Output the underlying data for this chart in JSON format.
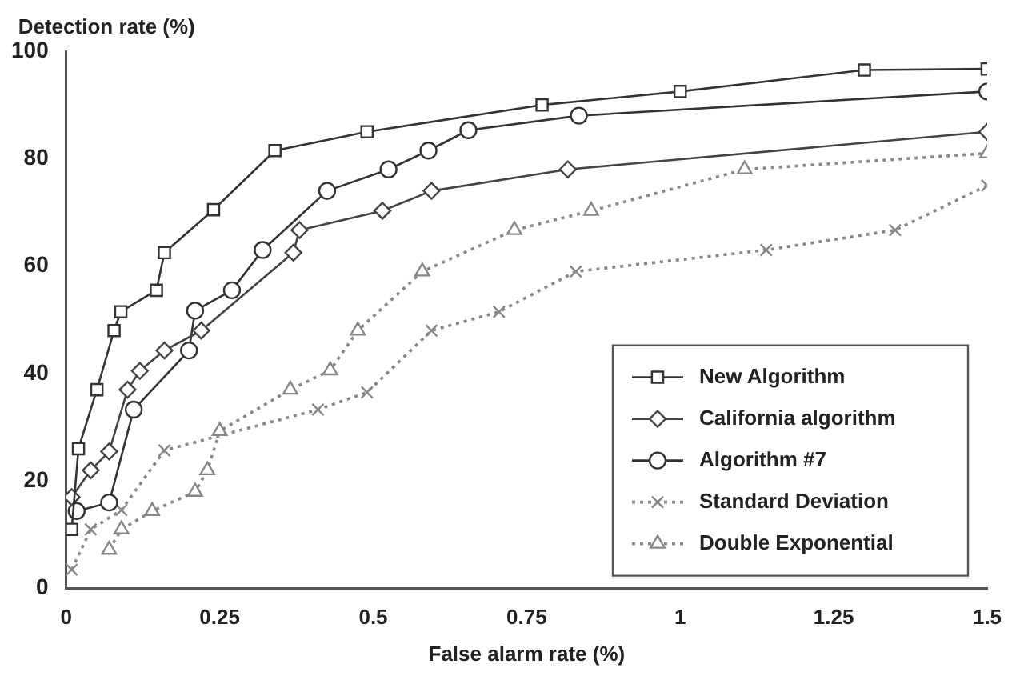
{
  "chart_data": {
    "type": "line",
    "xlabel": "False alarm rate (%)",
    "ylabel": "Detection rate (%)",
    "xlim": [
      0,
      1.5
    ],
    "xticks": [
      0,
      0.25,
      0.5,
      0.75,
      1,
      1.25,
      1.5
    ],
    "ylim": [
      0,
      100
    ],
    "yticks": [
      0,
      20,
      40,
      60,
      80,
      100
    ],
    "grid": false,
    "legend": "bottom right",
    "series": [
      {
        "name": "New Algorithm",
        "color": "#333333",
        "marker": "square",
        "line_style": "solid",
        "x": [
          0.009,
          0.02,
          0.05,
          0.078,
          0.089,
          0.147,
          0.16,
          0.24,
          0.34,
          0.49,
          0.775,
          1.0,
          1.3,
          1.5
        ],
        "values": [
          11,
          26,
          37,
          48,
          51.5,
          55.5,
          62.5,
          70.5,
          81.5,
          85,
          90,
          92.5,
          96.5,
          96.7
        ]
      },
      {
        "name": "California algorithm",
        "color": "#444444",
        "marker": "diamond",
        "line_style": "solid",
        "x": [
          0.009,
          0.04,
          0.07,
          0.1,
          0.12,
          0.16,
          0.22,
          0.37,
          0.38,
          0.515,
          0.595,
          0.817,
          1.5
        ],
        "values": [
          17,
          22,
          25.5,
          37,
          40.5,
          44.3,
          48,
          62.5,
          66.7,
          70.3,
          74,
          78,
          85
        ]
      },
      {
        "name": "Algorithm #7",
        "color": "#333333",
        "marker": "circle",
        "line_style": "solid",
        "x": [
          0.017,
          0.07,
          0.11,
          0.2,
          0.21,
          0.27,
          0.32,
          0.425,
          0.525,
          0.59,
          0.655,
          0.835,
          1.5
        ],
        "values": [
          14.4,
          16,
          33.3,
          44.3,
          51.7,
          55.5,
          63,
          74,
          78,
          81.5,
          85.3,
          88,
          92.5
        ]
      },
      {
        "name": "Standard Deviation",
        "color": "#888888",
        "marker": "cross",
        "line_style": "dotted",
        "x": [
          0.009,
          0.04,
          0.09,
          0.16,
          0.41,
          0.49,
          0.595,
          0.705,
          0.83,
          1.14,
          1.35,
          1.5
        ],
        "values": [
          3.5,
          11,
          14.6,
          25.7,
          33.3,
          36.5,
          48,
          51.5,
          59,
          63,
          66.7,
          75
        ]
      },
      {
        "name": "Double Exponential",
        "color": "#888888",
        "marker": "triangle",
        "line_style": "dotted",
        "x": [
          0.07,
          0.09,
          0.14,
          0.21,
          0.23,
          0.25,
          0.365,
          0.43,
          0.475,
          0.58,
          0.73,
          0.855,
          1.105,
          1.5
        ],
        "values": [
          7.2,
          11,
          14.4,
          18,
          22,
          29.3,
          37,
          40.6,
          48,
          59,
          66.7,
          70.3,
          78,
          81
        ]
      }
    ]
  }
}
